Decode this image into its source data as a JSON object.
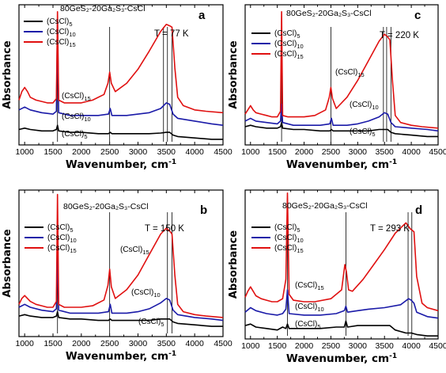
{
  "chart_data": [
    {
      "type": "line",
      "panel": "a",
      "composition": "80GeS₂-20Ga₂S₃-CsCl",
      "temperature": "T = 77 K",
      "xlabel": "Wavenumber, cm⁻¹",
      "ylabel": "Absorbance",
      "xlim": [
        900,
        4500
      ],
      "xticks": [
        "1000",
        "1500",
        "2000",
        "2500",
        "3000",
        "3500",
        "4000",
        "4500"
      ],
      "ylim": [
        0,
        1
      ],
      "legend": "top-left",
      "colors": {
        "(CsCl)5": "#000000",
        "(CsCl)10": "#1a1aa8",
        "(CsCl)15": "#e01010"
      },
      "series": [
        {
          "name": "(CsCl)5",
          "color": "#000000",
          "x": [
            900,
            1000,
            1100,
            1300,
            1500,
            1560,
            1580,
            1600,
            1800,
            2000,
            2300,
            2480,
            2510,
            2540,
            2800,
            3000,
            3200,
            3400,
            3500,
            3560,
            3620,
            3700,
            4000,
            4300,
            4500
          ],
          "y": [
            0.11,
            0.12,
            0.11,
            0.1,
            0.1,
            0.11,
            0.14,
            0.1,
            0.09,
            0.09,
            0.08,
            0.08,
            0.09,
            0.08,
            0.08,
            0.08,
            0.08,
            0.085,
            0.09,
            0.09,
            0.07,
            0.06,
            0.05,
            0.04,
            0.04
          ]
        },
        {
          "name": "(CsCl)10",
          "color": "#1a1aa8",
          "x": [
            900,
            1000,
            1100,
            1300,
            1500,
            1560,
            1580,
            1600,
            1800,
            2000,
            2300,
            2480,
            2510,
            2540,
            2800,
            3000,
            3200,
            3400,
            3500,
            3560,
            3620,
            3700,
            4000,
            4300,
            4500
          ],
          "y": [
            0.25,
            0.27,
            0.25,
            0.23,
            0.22,
            0.24,
            0.88,
            0.23,
            0.21,
            0.21,
            0.21,
            0.22,
            0.26,
            0.21,
            0.21,
            0.22,
            0.23,
            0.26,
            0.3,
            0.29,
            0.22,
            0.19,
            0.17,
            0.15,
            0.14
          ]
        },
        {
          "name": "(CsCl)15",
          "color": "#e01010",
          "x": [
            900,
            950,
            1000,
            1050,
            1100,
            1200,
            1300,
            1400,
            1500,
            1560,
            1580,
            1600,
            1700,
            1800,
            2000,
            2200,
            2400,
            2470,
            2500,
            2530,
            2600,
            2800,
            3000,
            3200,
            3400,
            3500,
            3560,
            3600,
            3650,
            3700,
            3800,
            4000,
            4200,
            4500
          ],
          "y": [
            0.32,
            0.38,
            0.41,
            0.38,
            0.34,
            0.32,
            0.31,
            0.3,
            0.3,
            0.33,
            0.95,
            0.32,
            0.3,
            0.3,
            0.3,
            0.32,
            0.36,
            0.44,
            0.52,
            0.44,
            0.38,
            0.44,
            0.54,
            0.67,
            0.81,
            0.86,
            0.85,
            0.84,
            0.55,
            0.34,
            0.28,
            0.25,
            0.24,
            0.23
          ]
        }
      ]
    },
    {
      "type": "line",
      "panel": "b",
      "composition": "80GeS₂-20Ga₂S₃-CsCl",
      "temperature": "T = 150 K",
      "xlabel": "Wavenumber, cm⁻¹",
      "ylabel": "Absorbance",
      "xlim": [
        900,
        4500
      ],
      "xticks": [
        "1000",
        "1500",
        "2000",
        "2500",
        "3000",
        "3500",
        "4000",
        "4500"
      ],
      "ylim": [
        0,
        1
      ],
      "legend": "top-left",
      "series": [
        {
          "name": "(CsCl)5",
          "color": "#000000",
          "x": [
            900,
            1000,
            1100,
            1300,
            1500,
            1560,
            1580,
            1600,
            1800,
            2000,
            2300,
            2480,
            2510,
            2540,
            2800,
            3000,
            3200,
            3400,
            3500,
            3560,
            3620,
            3700,
            4000,
            4300,
            4500
          ],
          "y": [
            0.14,
            0.15,
            0.14,
            0.13,
            0.13,
            0.14,
            0.17,
            0.13,
            0.12,
            0.12,
            0.11,
            0.11,
            0.12,
            0.11,
            0.11,
            0.11,
            0.11,
            0.12,
            0.12,
            0.12,
            0.1,
            0.09,
            0.08,
            0.07,
            0.07
          ]
        },
        {
          "name": "(CsCl)10",
          "color": "#1a1aa8",
          "x": [
            900,
            1000,
            1100,
            1300,
            1500,
            1560,
            1580,
            1600,
            1800,
            2000,
            2300,
            2480,
            2510,
            2540,
            2800,
            3000,
            3200,
            3400,
            3500,
            3560,
            3620,
            3700,
            4000,
            4300,
            4500
          ],
          "y": [
            0.2,
            0.22,
            0.2,
            0.18,
            0.17,
            0.19,
            0.62,
            0.18,
            0.16,
            0.16,
            0.16,
            0.17,
            0.22,
            0.16,
            0.16,
            0.17,
            0.19,
            0.23,
            0.26,
            0.25,
            0.18,
            0.15,
            0.13,
            0.12,
            0.11
          ]
        },
        {
          "name": "(CsCl)15",
          "color": "#e01010",
          "x": [
            900,
            950,
            1000,
            1050,
            1100,
            1200,
            1300,
            1400,
            1500,
            1560,
            1580,
            1600,
            1700,
            1800,
            2000,
            2200,
            2400,
            2470,
            2500,
            2530,
            2600,
            2800,
            3000,
            3200,
            3400,
            3500,
            3560,
            3600,
            3650,
            3700,
            3800,
            4000,
            4200,
            4500
          ],
          "y": [
            0.22,
            0.26,
            0.28,
            0.26,
            0.24,
            0.22,
            0.21,
            0.2,
            0.2,
            0.24,
            0.97,
            0.22,
            0.2,
            0.2,
            0.2,
            0.21,
            0.25,
            0.35,
            0.46,
            0.34,
            0.26,
            0.32,
            0.42,
            0.56,
            0.7,
            0.74,
            0.72,
            0.7,
            0.42,
            0.22,
            0.17,
            0.15,
            0.14,
            0.13
          ]
        }
      ]
    },
    {
      "type": "line",
      "panel": "c",
      "composition": "80GeS₂-20Ga₂S₃-CsCl",
      "temperature": "T = 220 K",
      "xlabel": "Wavenumber, cm⁻¹",
      "ylabel": "Absorbance",
      "xlim": [
        900,
        4500
      ],
      "xticks": [
        "1000",
        "1500",
        "2000",
        "2500",
        "3000",
        "3500",
        "4000",
        "4500"
      ],
      "ylim": [
        0,
        1
      ],
      "legend": "top-left",
      "series": [
        {
          "name": "(CsCl)5",
          "color": "#000000",
          "x": [
            900,
            1000,
            1100,
            1300,
            1500,
            1560,
            1580,
            1600,
            1800,
            2000,
            2300,
            2480,
            2510,
            2540,
            2800,
            3000,
            3200,
            3400,
            3500,
            3560,
            3620,
            3700,
            4000,
            4300,
            4500
          ],
          "y": [
            0.13,
            0.14,
            0.13,
            0.12,
            0.12,
            0.13,
            0.16,
            0.12,
            0.11,
            0.11,
            0.1,
            0.1,
            0.11,
            0.1,
            0.1,
            0.1,
            0.1,
            0.11,
            0.11,
            0.11,
            0.09,
            0.08,
            0.07,
            0.06,
            0.06
          ]
        },
        {
          "name": "(CsCl)10",
          "color": "#1a1aa8",
          "x": [
            900,
            1000,
            1100,
            1300,
            1500,
            1560,
            1580,
            1600,
            1800,
            2000,
            2300,
            2480,
            2510,
            2540,
            2800,
            3000,
            3200,
            3400,
            3500,
            3560,
            3620,
            3700,
            4000,
            4300,
            4500
          ],
          "y": [
            0.17,
            0.19,
            0.17,
            0.16,
            0.15,
            0.17,
            0.29,
            0.16,
            0.14,
            0.14,
            0.14,
            0.15,
            0.19,
            0.14,
            0.14,
            0.15,
            0.17,
            0.2,
            0.23,
            0.22,
            0.16,
            0.13,
            0.12,
            0.11,
            0.1
          ]
        },
        {
          "name": "(CsCl)15",
          "color": "#e01010",
          "x": [
            900,
            950,
            1000,
            1050,
            1100,
            1200,
            1300,
            1400,
            1500,
            1560,
            1580,
            1600,
            1700,
            1800,
            2000,
            2200,
            2400,
            2470,
            2500,
            2530,
            2600,
            2800,
            3000,
            3200,
            3400,
            3500,
            3560,
            3600,
            3650,
            3700,
            3800,
            4000,
            4200,
            4500
          ],
          "y": [
            0.22,
            0.25,
            0.28,
            0.25,
            0.23,
            0.22,
            0.21,
            0.2,
            0.2,
            0.24,
            0.95,
            0.21,
            0.2,
            0.2,
            0.2,
            0.21,
            0.25,
            0.34,
            0.41,
            0.33,
            0.26,
            0.34,
            0.46,
            0.6,
            0.74,
            0.79,
            0.77,
            0.75,
            0.45,
            0.21,
            0.16,
            0.14,
            0.13,
            0.12
          ]
        }
      ]
    },
    {
      "type": "line",
      "panel": "d",
      "composition": "80GeS₂-20Ga₂S₃-CsCl",
      "temperature": "T = 293 K",
      "xlabel": "Wavenumber, cm⁻¹",
      "ylabel": "Absorbance",
      "xlim": [
        900,
        4500
      ],
      "xticks": [
        "1000",
        "1500",
        "2000",
        "2500",
        "3000",
        "3500",
        "4000",
        "4500"
      ],
      "ylim": [
        0,
        1
      ],
      "legend": "top-left",
      "series": [
        {
          "name": "(CsCl)5",
          "color": "#000000",
          "x": [
            900,
            1000,
            1100,
            1300,
            1500,
            1600,
            1660,
            1690,
            1720,
            2000,
            2300,
            2600,
            2750,
            2780,
            2810,
            3000,
            3200,
            3500,
            3600,
            3700,
            3900,
            4000,
            4100,
            4300,
            4500
          ],
          "y": [
            0.09,
            0.1,
            0.08,
            0.07,
            0.06,
            0.08,
            0.07,
            0.1,
            0.07,
            0.07,
            0.07,
            0.08,
            0.08,
            0.12,
            0.08,
            0.09,
            0.09,
            0.09,
            0.09,
            0.06,
            0.04,
            0.04,
            0.03,
            0.02,
            0.02
          ]
        },
        {
          "name": "(CsCl)10",
          "color": "#1a1aa8",
          "x": [
            900,
            1000,
            1100,
            1300,
            1500,
            1600,
            1660,
            1690,
            1720,
            2000,
            2300,
            2600,
            2750,
            2780,
            2810,
            3000,
            3200,
            3500,
            3800,
            3950,
            4000,
            4050,
            4100,
            4300,
            4500
          ],
          "y": [
            0.18,
            0.21,
            0.19,
            0.17,
            0.16,
            0.17,
            0.2,
            0.33,
            0.17,
            0.16,
            0.16,
            0.17,
            0.19,
            0.22,
            0.18,
            0.19,
            0.2,
            0.21,
            0.23,
            0.27,
            0.26,
            0.24,
            0.18,
            0.15,
            0.14
          ]
        },
        {
          "name": "(CsCl)15",
          "color": "#e01010",
          "x": [
            900,
            950,
            1000,
            1050,
            1100,
            1200,
            1300,
            1400,
            1500,
            1600,
            1660,
            1690,
            1720,
            1800,
            2000,
            2200,
            2500,
            2700,
            2760,
            2790,
            2830,
            2900,
            3100,
            3300,
            3500,
            3700,
            3900,
            3980,
            4050,
            4100,
            4200,
            4300,
            4500
          ],
          "y": [
            0.28,
            0.32,
            0.35,
            0.32,
            0.29,
            0.27,
            0.26,
            0.25,
            0.25,
            0.27,
            0.4,
            0.98,
            0.3,
            0.26,
            0.25,
            0.25,
            0.27,
            0.33,
            0.5,
            0.45,
            0.33,
            0.32,
            0.4,
            0.5,
            0.6,
            0.71,
            0.78,
            0.74,
            0.72,
            0.42,
            0.24,
            0.21,
            0.19
          ]
        }
      ]
    }
  ],
  "legend_labels": [
    "(CsCl)",
    "(CsCl)",
    "(CsCl)"
  ],
  "legend_subscripts": [
    "5",
    "10",
    "15"
  ]
}
